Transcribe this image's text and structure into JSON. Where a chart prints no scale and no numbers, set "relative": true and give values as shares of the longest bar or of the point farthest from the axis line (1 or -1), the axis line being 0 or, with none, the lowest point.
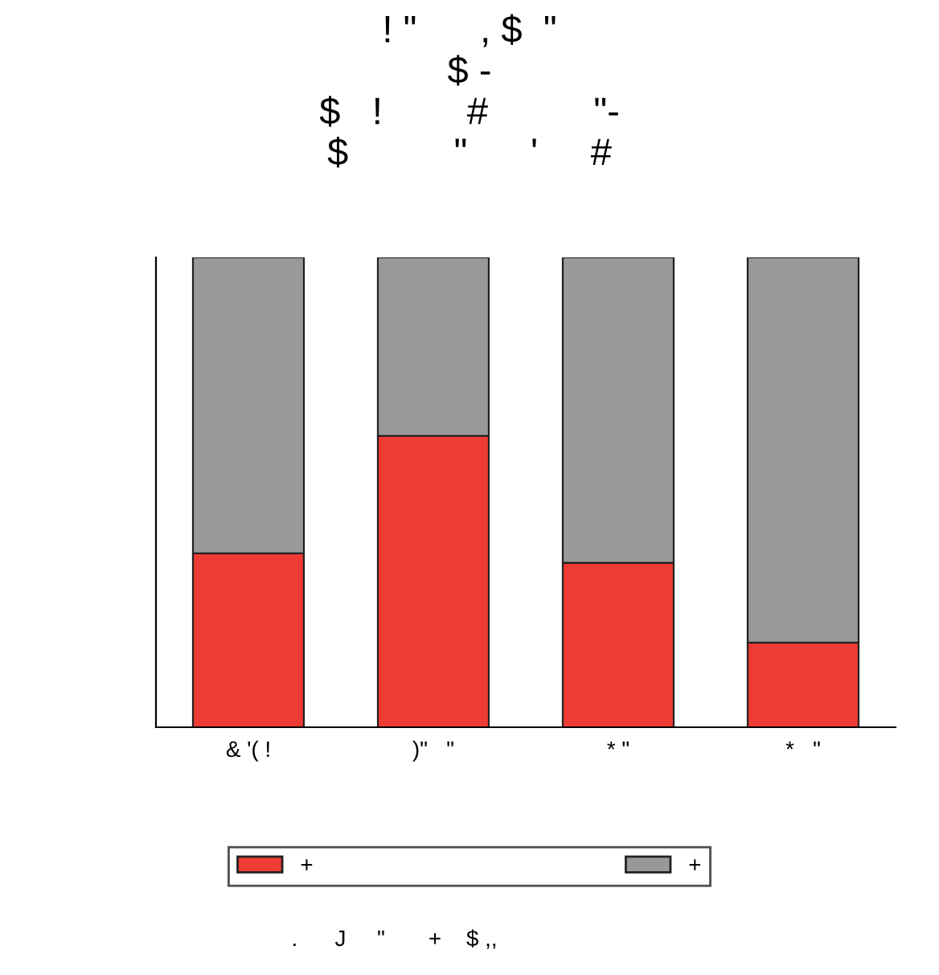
{
  "chart_data": {
    "type": "bar",
    "stacked": true,
    "relative": true,
    "title": "! \"      , $  \"\n$ -\n$   !        #          \"-\n$          \"      '     #",
    "categories": [
      "& '( !",
      ")\"   \"",
      "* \"",
      "*   \""
    ],
    "series": [
      {
        "name": "+",
        "color": "#ee3b33",
        "values": [
          0.37,
          0.62,
          0.35,
          0.18
        ]
      },
      {
        "name": "+",
        "color": "#999999",
        "values": [
          0.63,
          0.38,
          0.65,
          0.82
        ]
      }
    ],
    "legend": "bottom",
    "grid": false,
    "annotations": [
      ".      J     \"       +    $ ,,"
    ]
  }
}
